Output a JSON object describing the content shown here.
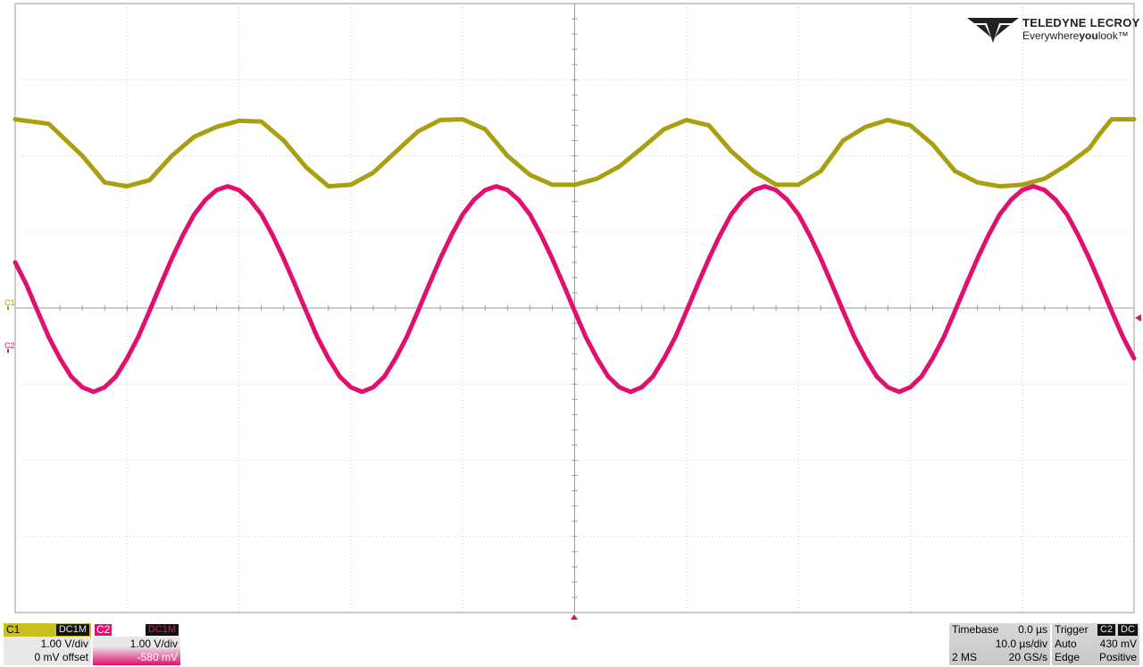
{
  "chart_data": {
    "type": "line",
    "title": "",
    "xlabel": "",
    "ylabel": "",
    "grid": true,
    "x_unit": "µs",
    "y_unit": "V",
    "x_range": [
      -50,
      50
    ],
    "y_range": [
      -4,
      4
    ],
    "series": [
      {
        "name": "C1",
        "color": "#a8a010",
        "x": [
          -50,
          -47,
          -44,
          -42,
          -40,
          -38,
          -36,
          -34,
          -32,
          -30,
          -28,
          -26,
          -24,
          -22,
          -20,
          -18,
          -16,
          -14,
          -12,
          -10,
          -8,
          -6,
          -4,
          -2,
          0,
          2,
          4,
          6,
          8,
          10,
          12,
          14,
          16,
          18,
          20,
          22,
          24,
          26,
          28,
          30,
          32,
          34,
          36,
          38,
          40,
          42,
          44,
          46,
          47,
          48,
          50
        ],
        "y": [
          2.48,
          2.42,
          2.0,
          1.65,
          1.6,
          1.68,
          2.0,
          2.25,
          2.38,
          2.46,
          2.45,
          2.2,
          1.85,
          1.6,
          1.62,
          1.78,
          2.05,
          2.32,
          2.47,
          2.48,
          2.35,
          2.0,
          1.75,
          1.62,
          1.62,
          1.7,
          1.86,
          2.1,
          2.35,
          2.47,
          2.4,
          2.06,
          1.8,
          1.62,
          1.62,
          1.8,
          2.2,
          2.38,
          2.47,
          2.4,
          2.15,
          1.8,
          1.65,
          1.6,
          1.62,
          1.7,
          1.88,
          2.1,
          2.3,
          2.48,
          2.48
        ]
      },
      {
        "name": "C2",
        "color": "#e0106e",
        "x": [
          -50,
          -49,
          -48,
          -47,
          -46,
          -45,
          -44,
          -43,
          -42,
          -41,
          -40,
          -39,
          -38,
          -37,
          -36,
          -35,
          -34,
          -33,
          -32,
          -31,
          -30,
          -29,
          -28,
          -27,
          -26,
          -25,
          -24,
          -23,
          -22,
          -21,
          -20,
          -19,
          -18,
          -17,
          -16,
          -15,
          -14,
          -13,
          -12,
          -11,
          -10,
          -9,
          -8,
          -7,
          -6,
          -5,
          -4,
          -3,
          -2,
          -1,
          0,
          1,
          2,
          3,
          4,
          5,
          6,
          7,
          8,
          9,
          10,
          11,
          12,
          13,
          14,
          15,
          16,
          17,
          18,
          19,
          20,
          21,
          22,
          23,
          24,
          25,
          26,
          27,
          28,
          29,
          30,
          31,
          32,
          33,
          34,
          35,
          36,
          37,
          38,
          39,
          40,
          41,
          42,
          43,
          44,
          45,
          46,
          47,
          48,
          49,
          50
        ],
        "y": [
          0.6,
          0.31,
          -0.04,
          -0.38,
          -0.66,
          -0.9,
          -1.04,
          -1.1,
          -1.04,
          -0.9,
          -0.66,
          -0.38,
          -0.04,
          0.31,
          0.65,
          0.96,
          1.23,
          1.42,
          1.55,
          1.6,
          1.55,
          1.42,
          1.23,
          0.96,
          0.65,
          0.31,
          -0.04,
          -0.38,
          -0.66,
          -0.9,
          -1.04,
          -1.1,
          -1.04,
          -0.9,
          -0.66,
          -0.38,
          -0.04,
          0.31,
          0.65,
          0.96,
          1.23,
          1.42,
          1.55,
          1.6,
          1.55,
          1.42,
          1.23,
          0.96,
          0.65,
          0.31,
          -0.04,
          -0.38,
          -0.66,
          -0.9,
          -1.04,
          -1.1,
          -1.04,
          -0.9,
          -0.66,
          -0.38,
          -0.04,
          0.31,
          0.65,
          0.96,
          1.23,
          1.42,
          1.55,
          1.6,
          1.55,
          1.42,
          1.23,
          0.96,
          0.65,
          0.31,
          -0.04,
          -0.38,
          -0.66,
          -0.9,
          -1.04,
          -1.1,
          -1.04,
          -0.9,
          -0.66,
          -0.38,
          -0.04,
          0.31,
          0.65,
          0.96,
          1.23,
          1.42,
          1.55,
          1.6,
          1.55,
          1.42,
          1.23,
          0.96,
          0.65,
          0.31,
          -0.04,
          -0.38,
          -0.66
        ]
      }
    ]
  },
  "logo": {
    "brand": "TELEDYNE LECROY",
    "tagline_pre": "Everywhere",
    "tagline_bold": "you",
    "tagline_post": "look™"
  },
  "markers": {
    "c1": "C1",
    "c2": "C2"
  },
  "channels": [
    {
      "label": "C1",
      "coupling": "DC1M",
      "scale": "1.00 V/div",
      "offset": "0 mV offset",
      "color": "#c8c01c"
    },
    {
      "label": "C2",
      "coupling": "DC1M",
      "scale": "1.00 V/div",
      "offset": "-580 mV",
      "color": "#e0106e"
    }
  ],
  "timebase": {
    "label": "Timebase",
    "delay": "0.0 µs",
    "scale": "10.0 µs/div",
    "samples": "2 MS",
    "rate": "20 GS/s"
  },
  "trigger": {
    "label": "Trigger",
    "source": "C2",
    "coupling": "DC",
    "mode": "Auto",
    "level": "430 mV",
    "type": "Edge",
    "slope": "Positive"
  },
  "colors": {
    "grid": "#bbbbbb",
    "c1": "#a8a010",
    "c2": "#e0106e"
  }
}
